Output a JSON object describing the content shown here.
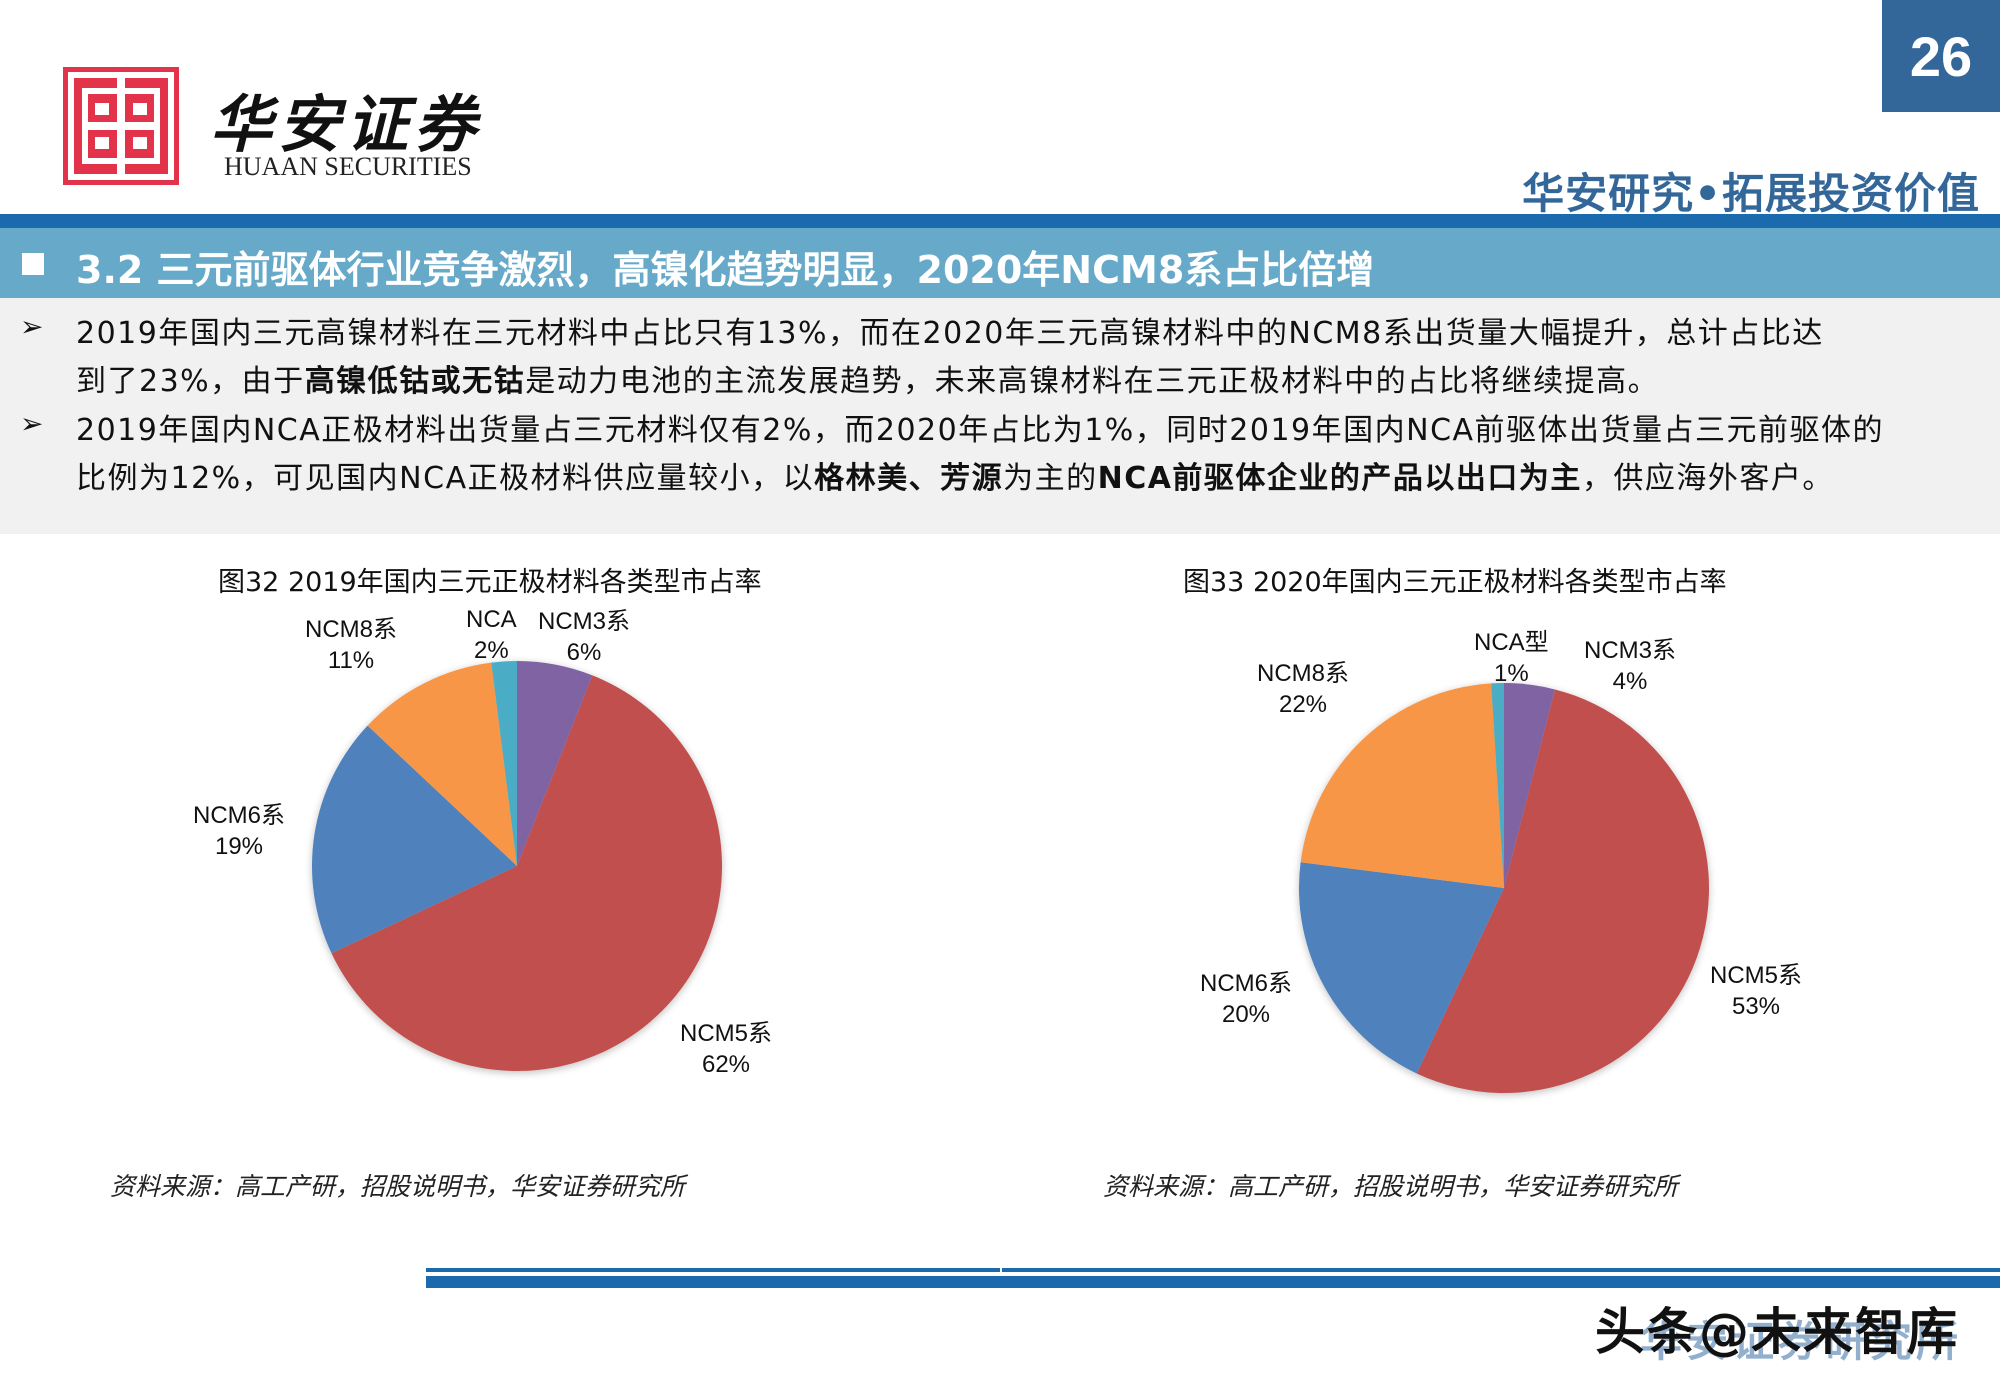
{
  "header": {
    "logo_cn": "华安证券",
    "logo_en": "HUAAN SECURITIES",
    "page_number": "26",
    "slogan": "华安研究•拓展投资价值"
  },
  "section": {
    "title": "3.2 三元前驱体行业竞争激烈，高镍化趋势明显，2020年NCM8系占比倍增"
  },
  "bullets": [
    {
      "lines": [
        [
          {
            "t": "2019年国内三元高镍材料在三元材料中占比只有13%，而在2020年三元高镍材料中的NCM8系出货量大幅提升，总计占比达",
            "b": false
          }
        ],
        [
          {
            "t": "到了23%，由于",
            "b": false
          },
          {
            "t": "高镍低钴或无钴",
            "b": true
          },
          {
            "t": "是动力电池的主流发展趋势，未来高镍材料在三元正极材料中的占比将继续提高。",
            "b": false
          }
        ]
      ]
    },
    {
      "lines": [
        [
          {
            "t": "2019年国内NCA正极材料出货量占三元材料仅有2%，而2020年占比为1%，同时2019年国内NCA前驱体出货量占三元前驱体的",
            "b": false
          }
        ],
        [
          {
            "t": "比例为12%，可见国内NCA正极材料供应量较小，以",
            "b": false
          },
          {
            "t": "格林美、芳源",
            "b": true
          },
          {
            "t": "为主的",
            "b": false
          },
          {
            "t": "NCA前驱体企业的产品以出口为主",
            "b": true
          },
          {
            "t": "，供应海外客户。",
            "b": false
          }
        ]
      ]
    }
  ],
  "chart_data": [
    {
      "type": "pie",
      "title": "图32 2019年国内三元正极材料各类型市占率",
      "start_angle": "12 o'clock, clockwise",
      "categories": [
        "NCM3系",
        "NCM5系",
        "NCM6系",
        "NCM8系",
        "NCA"
      ],
      "values": [
        6,
        62,
        19,
        11,
        2
      ],
      "labels": [
        "6%",
        "62%",
        "19%",
        "11%",
        "2%"
      ],
      "colors": [
        "#8064a2",
        "#c0504d",
        "#4f81bd",
        "#f79646",
        "#4bacc6"
      ],
      "source": "资料来源：高工产研，招股说明书，华安证券研究所"
    },
    {
      "type": "pie",
      "title": "图33 2020年国内三元正极材料各类型市占率",
      "start_angle": "12 o'clock, clockwise",
      "categories": [
        "NCM3系",
        "NCM5系",
        "NCM6系",
        "NCM8系",
        "NCA型"
      ],
      "values": [
        4,
        53,
        20,
        22,
        1
      ],
      "labels": [
        "4%",
        "53%",
        "20%",
        "22%",
        "1%"
      ],
      "colors": [
        "#8064a2",
        "#c0504d",
        "#4f81bd",
        "#f79646",
        "#4bacc6"
      ],
      "source": "资料来源：高工产研，招股说明书，华安证券研究所"
    }
  ],
  "footer": {
    "watermark": "头条@未来智库"
  }
}
